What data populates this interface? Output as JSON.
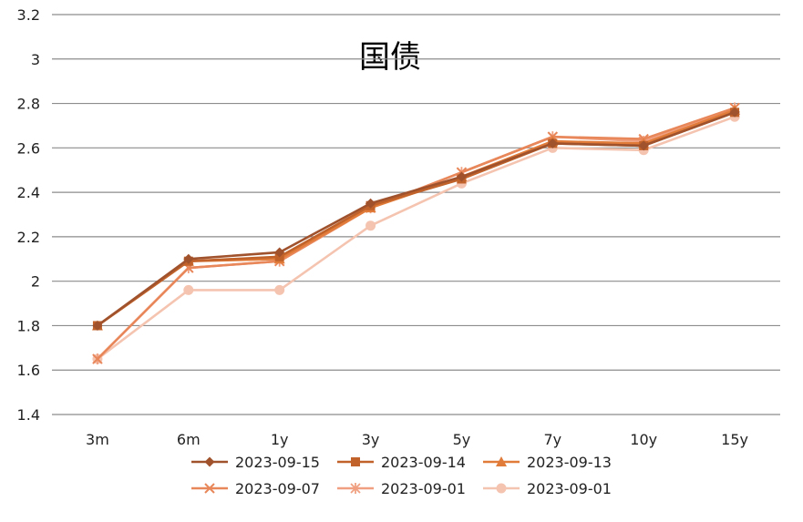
{
  "chart_data": {
    "type": "line",
    "title": "国债",
    "xlabel": "",
    "ylabel": "",
    "categories": [
      "3m",
      "6m",
      "1y",
      "3y",
      "5y",
      "7y",
      "10y",
      "15y"
    ],
    "ylim": [
      1.4,
      3.2
    ],
    "yticks": [
      "1.4",
      "1.6",
      "1.8",
      "2",
      "2.2",
      "2.4",
      "2.6",
      "2.8",
      "3",
      "3.2"
    ],
    "grid": "horizontal",
    "legend_position": "bottom",
    "series": [
      {
        "name": "2023-09-15",
        "marker": "diamond",
        "color": "#A0522D",
        "values": [
          1.8,
          2.1,
          2.13,
          2.35,
          2.47,
          2.62,
          2.61,
          2.76
        ]
      },
      {
        "name": "2023-09-14",
        "marker": "square",
        "color": "#C0622A",
        "values": [
          1.8,
          2.09,
          2.11,
          2.34,
          2.46,
          2.62,
          2.61,
          2.76
        ]
      },
      {
        "name": "2023-09-13",
        "marker": "triangle",
        "color": "#E07B39",
        "values": [
          1.8,
          2.09,
          2.1,
          2.33,
          2.47,
          2.63,
          2.62,
          2.77
        ]
      },
      {
        "name": "2023-09-07",
        "marker": "x",
        "color": "#E8875A",
        "values": [
          1.65,
          2.06,
          2.09,
          2.33,
          2.49,
          2.65,
          2.64,
          2.78
        ]
      },
      {
        "name": "2023-09-01",
        "marker": "star",
        "color": "#F0A080",
        "values": [
          1.65,
          2.06,
          2.09,
          2.33,
          2.49,
          2.65,
          2.63,
          2.78
        ]
      },
      {
        "name": "2023-09-01",
        "marker": "circle",
        "color": "#F5C4B0",
        "values": [
          1.65,
          1.96,
          1.96,
          2.25,
          2.44,
          2.6,
          2.59,
          2.74
        ]
      }
    ]
  }
}
